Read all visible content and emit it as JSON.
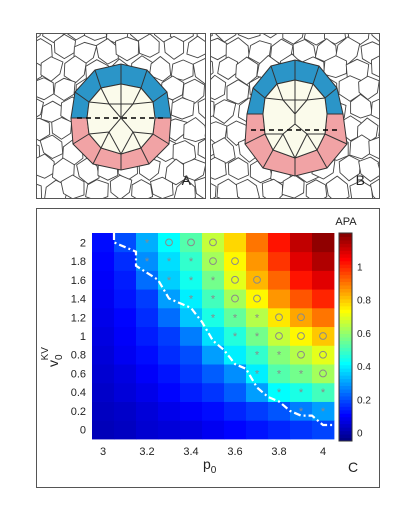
{
  "panels": {
    "a": {
      "label": "A"
    },
    "b": {
      "label": "B"
    },
    "c": {
      "label": "C"
    }
  },
  "colors": {
    "top_cells": "#2b95c8",
    "bottom_cells": "#f1a3a5",
    "core_cells": "#fbfbeb",
    "cell_edges": "#333333"
  },
  "chart_data": {
    "type": "heatmap",
    "xlabel": "p_0",
    "ylabel": "v_0^KV",
    "x_values": [
      3.0,
      3.1,
      3.2,
      3.3,
      3.4,
      3.5,
      3.6,
      3.7,
      3.8,
      3.9,
      4.0
    ],
    "y_values": [
      0,
      0.2,
      0.4,
      0.6,
      0.8,
      1.0,
      1.2,
      1.4,
      1.6,
      1.8,
      2.0
    ],
    "x_ticks": [
      "3",
      "3.2",
      "3.4",
      "3.6",
      "3.8",
      "4"
    ],
    "y_ticks": [
      "0",
      "0.2",
      "0.4",
      "0.6",
      "0.8",
      "1",
      "1.2",
      "1.4",
      "1.6",
      "1.8",
      "2"
    ],
    "colorbar": {
      "title": "APA",
      "range": [
        -0.05,
        1.2
      ],
      "ticks": [
        "0",
        "0.2",
        "0.4",
        "0.6",
        "0.8",
        "1"
      ],
      "colormap": "jet"
    },
    "apa": [
      [
        0.02,
        0.03,
        0.05,
        0.06,
        0.07,
        0.09,
        0.11,
        0.13,
        0.15,
        0.17,
        0.19
      ],
      [
        0.03,
        0.04,
        0.06,
        0.08,
        0.1,
        0.12,
        0.15,
        0.18,
        0.21,
        0.26,
        0.3
      ],
      [
        0.04,
        0.06,
        0.08,
        0.11,
        0.14,
        0.17,
        0.22,
        0.3,
        0.42,
        0.45,
        0.5
      ],
      [
        0.05,
        0.07,
        0.1,
        0.13,
        0.17,
        0.22,
        0.28,
        0.4,
        0.52,
        0.56,
        0.62
      ],
      [
        0.06,
        0.09,
        0.12,
        0.16,
        0.2,
        0.3,
        0.4,
        0.48,
        0.58,
        0.64,
        0.7
      ],
      [
        0.07,
        0.1,
        0.14,
        0.18,
        0.26,
        0.38,
        0.46,
        0.56,
        0.66,
        0.74,
        0.8
      ],
      [
        0.08,
        0.11,
        0.16,
        0.24,
        0.35,
        0.45,
        0.54,
        0.64,
        0.76,
        0.84,
        0.9
      ],
      [
        0.09,
        0.13,
        0.18,
        0.3,
        0.4,
        0.5,
        0.62,
        0.74,
        0.86,
        0.94,
        1.0
      ],
      [
        0.1,
        0.14,
        0.24,
        0.36,
        0.44,
        0.56,
        0.7,
        0.82,
        0.92,
        1.02,
        1.08
      ],
      [
        0.11,
        0.16,
        0.28,
        0.38,
        0.48,
        0.62,
        0.74,
        0.86,
        0.98,
        1.08,
        1.14
      ],
      [
        0.12,
        0.2,
        0.32,
        0.42,
        0.52,
        0.66,
        0.78,
        0.9,
        1.02,
        1.12,
        1.18
      ]
    ],
    "boundary": [
      [
        3.05,
        2.1
      ],
      [
        3.05,
        2.0
      ],
      [
        3.15,
        1.9
      ],
      [
        3.15,
        1.75
      ],
      [
        3.25,
        1.6
      ],
      [
        3.3,
        1.4
      ],
      [
        3.4,
        1.3
      ],
      [
        3.45,
        1.15
      ],
      [
        3.5,
        0.95
      ],
      [
        3.55,
        0.85
      ],
      [
        3.6,
        0.7
      ],
      [
        3.65,
        0.65
      ],
      [
        3.7,
        0.45
      ],
      [
        3.75,
        0.35
      ],
      [
        3.8,
        0.3
      ],
      [
        3.85,
        0.2
      ],
      [
        3.9,
        0.15
      ],
      [
        3.95,
        0.15
      ],
      [
        4.0,
        0.05
      ],
      [
        4.05,
        0.05
      ]
    ],
    "markers": [
      {
        "x": 3.2,
        "y": 1.8,
        "m": "*"
      },
      {
        "x": 3.2,
        "y": 2.0,
        "m": "*"
      },
      {
        "x": 3.3,
        "y": 1.6,
        "m": "*"
      },
      {
        "x": 3.3,
        "y": 1.8,
        "m": "*"
      },
      {
        "x": 3.3,
        "y": 2.0,
        "m": "o"
      },
      {
        "x": 3.4,
        "y": 1.4,
        "m": "*"
      },
      {
        "x": 3.4,
        "y": 1.6,
        "m": "*"
      },
      {
        "x": 3.4,
        "y": 1.8,
        "m": "*"
      },
      {
        "x": 3.4,
        "y": 2.0,
        "m": "o"
      },
      {
        "x": 3.5,
        "y": 1.2,
        "m": "*"
      },
      {
        "x": 3.5,
        "y": 1.4,
        "m": "*"
      },
      {
        "x": 3.5,
        "y": 1.6,
        "m": "*"
      },
      {
        "x": 3.5,
        "y": 1.8,
        "m": "o"
      },
      {
        "x": 3.5,
        "y": 2.0,
        "m": "o"
      },
      {
        "x": 3.6,
        "y": 1.0,
        "m": "*"
      },
      {
        "x": 3.6,
        "y": 1.2,
        "m": "*"
      },
      {
        "x": 3.6,
        "y": 1.4,
        "m": "o"
      },
      {
        "x": 3.6,
        "y": 1.6,
        "m": "o"
      },
      {
        "x": 3.6,
        "y": 1.8,
        "m": "o"
      },
      {
        "x": 3.7,
        "y": 0.6,
        "m": "*"
      },
      {
        "x": 3.7,
        "y": 0.8,
        "m": "*"
      },
      {
        "x": 3.7,
        "y": 1.0,
        "m": "*"
      },
      {
        "x": 3.7,
        "y": 1.2,
        "m": "*"
      },
      {
        "x": 3.7,
        "y": 1.4,
        "m": "o"
      },
      {
        "x": 3.7,
        "y": 1.6,
        "m": "o"
      },
      {
        "x": 3.8,
        "y": 0.4,
        "m": "*"
      },
      {
        "x": 3.8,
        "y": 0.6,
        "m": "*"
      },
      {
        "x": 3.8,
        "y": 0.8,
        "m": "*"
      },
      {
        "x": 3.8,
        "y": 1.0,
        "m": "o"
      },
      {
        "x": 3.8,
        "y": 1.2,
        "m": "o"
      },
      {
        "x": 3.9,
        "y": 0.2,
        "m": "*"
      },
      {
        "x": 3.9,
        "y": 0.4,
        "m": "*"
      },
      {
        "x": 3.9,
        "y": 0.6,
        "m": "*"
      },
      {
        "x": 3.9,
        "y": 0.8,
        "m": "o"
      },
      {
        "x": 3.9,
        "y": 1.0,
        "m": "o"
      },
      {
        "x": 3.9,
        "y": 1.2,
        "m": "o"
      },
      {
        "x": 4.0,
        "y": 0.2,
        "m": "*"
      },
      {
        "x": 4.0,
        "y": 0.4,
        "m": "*"
      },
      {
        "x": 4.0,
        "y": 0.6,
        "m": "o"
      },
      {
        "x": 4.0,
        "y": 0.8,
        "m": "o"
      },
      {
        "x": 4.0,
        "y": 1.0,
        "m": "o"
      }
    ]
  }
}
